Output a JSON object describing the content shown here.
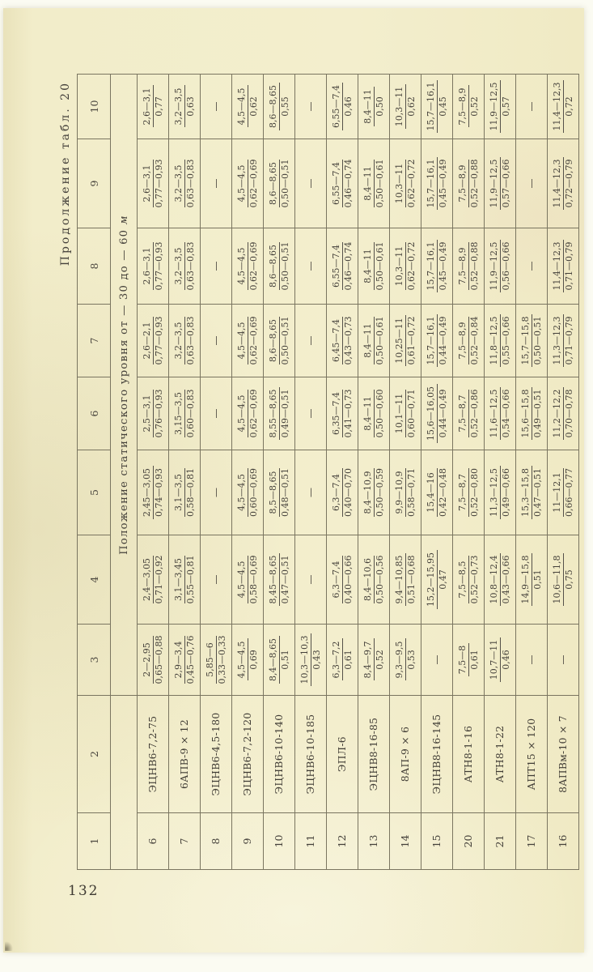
{
  "colors": {
    "paper": "#f2edca",
    "ink": "#44403a",
    "line": "#7a7560",
    "bar": "#55514a"
  },
  "page": {
    "caption": "Продолжение табл. 20",
    "number": "132"
  },
  "table": {
    "col_numbers": [
      "1",
      "2",
      "3",
      "4",
      "5",
      "6",
      "7",
      "8",
      "9",
      "10"
    ],
    "span_header": "Положение статического уровня от — 30 до — 60",
    "span_header_unit": "м",
    "rows": [
      {
        "no": "6",
        "name": "ЭЦНВ6-7,2-75",
        "cells": [
          {
            "n": "2—2,95",
            "d": "0,65—0,88"
          },
          {
            "n": "2,4—3,05",
            "d": "0,71—0,92"
          },
          {
            "n": "2,45—3,05",
            "d": "0,74—0,93"
          },
          {
            "n": "2,5—3,1",
            "d": "0,76—0,93"
          },
          {
            "n": "2,6—2,1",
            "d": "0,77—0,93"
          },
          {
            "n": "2,6—3,1",
            "d": "0,77—0,93"
          },
          {
            "n": "2,6—3,1",
            "d": "0,77—0,93"
          },
          {
            "n": "2,6—3,1",
            "d": "0,77"
          }
        ]
      },
      {
        "no": "7",
        "name": "6АПВ-9 × 12",
        "cells": [
          {
            "n": "2,9—3,4",
            "d": "0,45—0,76"
          },
          {
            "n": "3,1—3,45",
            "d": "0,55—0,81"
          },
          {
            "n": "3,1—3,5",
            "d": "0,58—0,81"
          },
          {
            "n": "3,15—3,5",
            "d": "0,60—0,83"
          },
          {
            "n": "3,2—3,5",
            "d": "0,63—0,83"
          },
          {
            "n": "3,2—3,5",
            "d": "0,63—0,83"
          },
          {
            "n": "3,2—3,5",
            "d": "0,63—0,83"
          },
          {
            "n": "3,2—3,5",
            "d": "0,63"
          }
        ]
      },
      {
        "no": "8",
        "name": "ЭЦНВ6-4,5-180",
        "cells": [
          {
            "n": "5,85—6",
            "d": "0,33—0,33"
          },
          "—",
          "—",
          "—",
          "—",
          "—",
          "—",
          "—"
        ]
      },
      {
        "no": "9",
        "name": "ЭЦНВ6-7,2-120",
        "cells": [
          {
            "n": "4,5—4,5",
            "d": "0,69"
          },
          {
            "n": "4,5—4,5",
            "d": "0,58—0,69"
          },
          {
            "n": "4,5—4,5",
            "d": "0,60—0,69"
          },
          {
            "n": "4,5—4,5",
            "d": "0,62—0,69"
          },
          {
            "n": "4,5—4,5",
            "d": "0,62—0,69"
          },
          {
            "n": "4,5—4,5",
            "d": "0,62—0,69"
          },
          {
            "n": "4,5—4,5",
            "d": "0,62—0,69"
          },
          {
            "n": "4,5—4,5",
            "d": "0,62"
          }
        ]
      },
      {
        "no": "10",
        "name": "ЭЦНВ6-10-140",
        "cells": [
          {
            "n": "8,4—8,65",
            "d": "0,51"
          },
          {
            "n": "8,45—8,65",
            "d": "0,47—0,51"
          },
          {
            "n": "8,5—8,65",
            "d": "0,48—0,51"
          },
          {
            "n": "8,55—8,65",
            "d": "0,49—0,51"
          },
          {
            "n": "8,6—8,65",
            "d": "0,50—0,51"
          },
          {
            "n": "8,6—8,65",
            "d": "0,50—0,51"
          },
          {
            "n": "8,6—8,65",
            "d": "0,50—0,51"
          },
          {
            "n": "8,6—8,65",
            "d": "0,55"
          }
        ]
      },
      {
        "no": "11",
        "name": "ЭЦНВ6-10-185",
        "cells": [
          {
            "n": "10,3—10,3",
            "d": "0,43"
          },
          "—",
          "—",
          "—",
          "—",
          "—",
          "—",
          "—"
        ]
      },
      {
        "no": "12",
        "name": "ЭПЛ-6",
        "cells": [
          {
            "n": "6,3—7,2",
            "d": "0,61"
          },
          {
            "n": "6,3—7,4",
            "d": "0,40—0,66"
          },
          {
            "n": "6,3—7,4",
            "d": "0,40—0,70"
          },
          {
            "n": "6,35—7,4",
            "d": "0,41—0,73"
          },
          {
            "n": "6,45—7,4",
            "d": "0,43—0,73"
          },
          {
            "n": "6,55—7,4",
            "d": "0,46—0,74"
          },
          {
            "n": "6,55—7,4",
            "d": "0,46—0,74"
          },
          {
            "n": "6,55—7,4",
            "d": "0,46"
          }
        ]
      },
      {
        "no": "13",
        "name": "ЭЦНВ8-16-85",
        "cells": [
          {
            "n": "8,4—9,7",
            "d": "0,52"
          },
          {
            "n": "8,4—10,6",
            "d": "0,50—0,56"
          },
          {
            "n": "8,4—10,9",
            "d": "0,50—0,59"
          },
          {
            "n": "8,4—11",
            "d": "0,50—0,60"
          },
          {
            "n": "8,4—11",
            "d": "0,50—0,61"
          },
          {
            "n": "8,4—11",
            "d": "0,50—0,61"
          },
          {
            "n": "8,4—11",
            "d": "0,50—0,61"
          },
          {
            "n": "8,4—11",
            "d": "0,50"
          }
        ]
      },
      {
        "no": "14",
        "name": "8АП-9 × 6",
        "cells": [
          {
            "n": "9,3—9,5",
            "d": "0,53"
          },
          {
            "n": "9,4—10,85",
            "d": "0,51—0,68"
          },
          {
            "n": "9,9—10,9",
            "d": "0,58—0,71"
          },
          {
            "n": "10,1—11",
            "d": "0,60—0,71"
          },
          {
            "n": "10,25—11",
            "d": "0,61—0,72"
          },
          {
            "n": "10,3—11",
            "d": "0,62—0,72"
          },
          {
            "n": "10,3—11",
            "d": "0,62—0,72"
          },
          {
            "n": "10,3—11",
            "d": "0,62"
          }
        ]
      },
      {
        "no": "15",
        "name": "ЭЦНВ8-16-145",
        "cells": [
          "—",
          {
            "n": "15,2—15,95",
            "d": "0,47"
          },
          {
            "n": "15,4—16",
            "d": "0,42—0,48"
          },
          {
            "n": "15,6—16,05",
            "d": "0,44—0,49"
          },
          {
            "n": "15,7—16,1",
            "d": "0,44—0,49"
          },
          {
            "n": "15,7—16,1",
            "d": "0,45—0,49"
          },
          {
            "n": "15,7—16,1",
            "d": "0,45—0,49"
          },
          {
            "n": "15,7—16,1",
            "d": "0,45"
          }
        ]
      },
      {
        "no": "20",
        "name": "АТН8-1-16",
        "cells": [
          {
            "n": "7,5—8",
            "d": "0,61"
          },
          {
            "n": "7,5—8,5",
            "d": "0,52—0,73"
          },
          {
            "n": "7,5—8,7",
            "d": "0,52—0,80"
          },
          {
            "n": "7,5—8,7",
            "d": "0,52—0,86"
          },
          {
            "n": "7,5—8,9",
            "d": "0,52—0,84"
          },
          {
            "n": "7,5—8,9",
            "d": "0,52—0,88"
          },
          {
            "n": "7,5—8,9",
            "d": "0,52—0,88"
          },
          {
            "n": "7,5—8,9",
            "d": "0,52"
          }
        ]
      },
      {
        "no": "21",
        "name": "АТН8-1-22",
        "cells": [
          {
            "n": "10,7—11",
            "d": "0,46"
          },
          {
            "n": "10,8—12,4",
            "d": "0,43—0,66"
          },
          {
            "n": "11,3—12,5",
            "d": "0,49—0,66"
          },
          {
            "n": "11,6—12,5",
            "d": "0,54—0,66"
          },
          {
            "n": "11,8—12,5",
            "d": "0,55—0,66"
          },
          {
            "n": "11,9—12,5",
            "d": "0,56—0,66"
          },
          {
            "n": "11,9—12,5",
            "d": "0,57—0,66"
          },
          {
            "n": "11,9—12,5",
            "d": "0,57"
          }
        ]
      },
      {
        "no": "17",
        "name": "АПТ15 × 120",
        "cells": [
          "—",
          {
            "n": "14,9—15,8",
            "d": "0,51"
          },
          {
            "n": "15,3—15,8",
            "d": "0,47—0,51"
          },
          {
            "n": "15,6—15,8",
            "d": "0,49—0,51"
          },
          {
            "n": "15,7—15,8",
            "d": "0,50—0,51"
          },
          "—",
          "—",
          "—"
        ]
      },
      {
        "no": "16",
        "name": "8АПВм-10 × 7",
        "cells": [
          "—",
          {
            "n": "10,6—11,8",
            "d": "0,75"
          },
          {
            "n": "11—12,1",
            "d": "0,66—0,77"
          },
          {
            "n": "11,2—12,2",
            "d": "0,70—0,78"
          },
          {
            "n": "11,3—12,3",
            "d": "0,71—0,79"
          },
          {
            "n": "11,4—12,3",
            "d": "0,71—0,79"
          },
          {
            "n": "11,4—12,3",
            "d": "0,72—0,79"
          },
          {
            "n": "11,4—12,3",
            "d": "0,72"
          }
        ]
      }
    ]
  }
}
